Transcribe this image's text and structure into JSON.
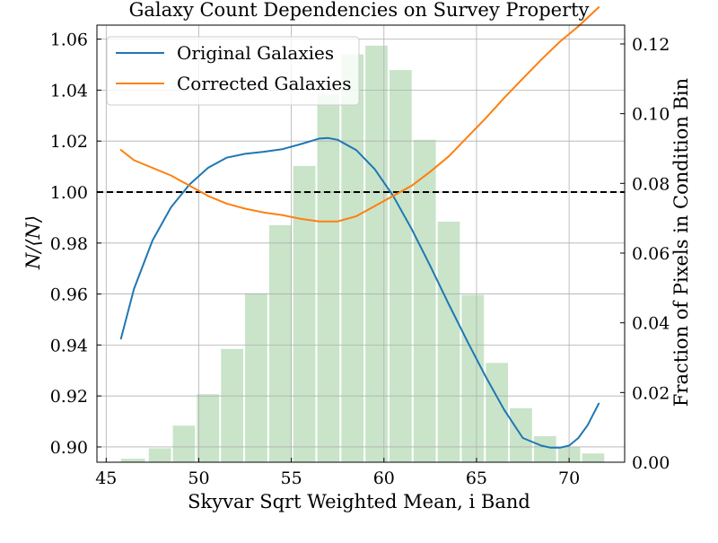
{
  "chart_data": {
    "type": "line",
    "title": "Galaxy Count Dependencies on Survey Property",
    "xlabel": "Skyvar Sqrt Weighted Mean, i Band",
    "ylabel": "N/⟨N⟩",
    "ylabel_right": "Fraction of Pixels in Condition Bin",
    "xlim": [
      44.5,
      73.0
    ],
    "ylim": [
      0.894,
      1.0655
    ],
    "ylim_right": [
      0.0,
      0.1254
    ],
    "x_ticks": [
      45,
      50,
      55,
      60,
      65,
      70
    ],
    "x_tick_labels": [
      "45",
      "50",
      "55",
      "60",
      "65",
      "70"
    ],
    "y_ticks": [
      0.9,
      0.92,
      0.94,
      0.96,
      0.98,
      1.0,
      1.02,
      1.04,
      1.06
    ],
    "y_tick_labels": [
      "0.90",
      "0.92",
      "0.94",
      "0.96",
      "0.98",
      "1.00",
      "1.02",
      "1.04",
      "1.06"
    ],
    "y_right_ticks": [
      0.0,
      0.02,
      0.04,
      0.06,
      0.08,
      0.1,
      0.12
    ],
    "y_right_tick_labels": [
      "0.00",
      "0.02",
      "0.04",
      "0.06",
      "0.08",
      "0.10",
      "0.12"
    ],
    "grid": true,
    "legend_position": "upper-left",
    "reference_line": {
      "y": 1.0,
      "style": "dashed",
      "color": "#000000"
    },
    "series": [
      {
        "name": "Original Galaxies",
        "color": "#1f77b4",
        "x": [
          45.8,
          46.5,
          47.5,
          48.5,
          49.5,
          50.5,
          51.5,
          52.5,
          53.5,
          54.5,
          55.5,
          56.5,
          57.0,
          57.5,
          58.5,
          59.5,
          60.5,
          61.5,
          62.5,
          63.5,
          64.5,
          65.5,
          66.5,
          67.5,
          68.5,
          69.0,
          69.5,
          70.0,
          70.5,
          71.0,
          71.6
        ],
        "y": [
          0.9425,
          0.962,
          0.981,
          0.994,
          1.003,
          1.0095,
          1.0135,
          1.015,
          1.0158,
          1.0168,
          1.0188,
          1.021,
          1.0212,
          1.0205,
          1.0165,
          1.009,
          0.9985,
          0.9855,
          0.971,
          0.956,
          0.9415,
          0.9275,
          0.9145,
          0.9035,
          0.9005,
          0.8997,
          0.8997,
          0.9005,
          0.9035,
          0.9085,
          0.917
        ]
      },
      {
        "name": "Corrected Galaxies",
        "color": "#ff7f0e",
        "x": [
          45.8,
          46.5,
          47.5,
          48.5,
          49.5,
          50.5,
          51.5,
          52.5,
          53.5,
          54.5,
          55.5,
          56.5,
          57.5,
          58.5,
          59.5,
          60.5,
          61.5,
          62.5,
          63.5,
          64.5,
          65.5,
          66.5,
          67.5,
          68.5,
          69.5,
          70.5,
          71.6
        ],
        "y": [
          1.0165,
          1.0125,
          1.0095,
          1.0065,
          1.0025,
          0.9985,
          0.9955,
          0.9935,
          0.992,
          0.991,
          0.9895,
          0.9885,
          0.9885,
          0.9905,
          0.9945,
          0.9985,
          1.0025,
          1.008,
          1.014,
          1.0215,
          1.029,
          1.037,
          1.0445,
          1.052,
          1.059,
          1.065,
          1.0725
        ]
      }
    ],
    "histogram": {
      "name": "Fraction of Pixels in Condition Bin",
      "axis": "right",
      "color": "#c9e4c9",
      "bins": [
        {
          "start": 45.8,
          "end": 47.1,
          "value": 0.001
        },
        {
          "start": 47.3,
          "end": 48.5,
          "value": 0.004
        },
        {
          "start": 48.6,
          "end": 49.8,
          "value": 0.0105
        },
        {
          "start": 49.9,
          "end": 51.1,
          "value": 0.0195
        },
        {
          "start": 51.2,
          "end": 52.4,
          "value": 0.0325
        },
        {
          "start": 52.5,
          "end": 53.7,
          "value": 0.0485
        },
        {
          "start": 53.8,
          "end": 55.0,
          "value": 0.068
        },
        {
          "start": 55.1,
          "end": 56.3,
          "value": 0.085
        },
        {
          "start": 56.4,
          "end": 57.6,
          "value": 0.1055
        },
        {
          "start": 57.7,
          "end": 58.9,
          "value": 0.117
        },
        {
          "start": 59.0,
          "end": 60.2,
          "value": 0.1195
        },
        {
          "start": 60.3,
          "end": 61.5,
          "value": 0.1125
        },
        {
          "start": 61.6,
          "end": 62.8,
          "value": 0.0925
        },
        {
          "start": 62.9,
          "end": 64.1,
          "value": 0.069
        },
        {
          "start": 64.2,
          "end": 65.4,
          "value": 0.048
        },
        {
          "start": 65.5,
          "end": 66.7,
          "value": 0.0285
        },
        {
          "start": 66.8,
          "end": 68.0,
          "value": 0.0155
        },
        {
          "start": 68.1,
          "end": 69.3,
          "value": 0.0075
        },
        {
          "start": 69.4,
          "end": 70.6,
          "value": 0.0045
        },
        {
          "start": 70.7,
          "end": 71.9,
          "value": 0.0025
        }
      ]
    }
  }
}
